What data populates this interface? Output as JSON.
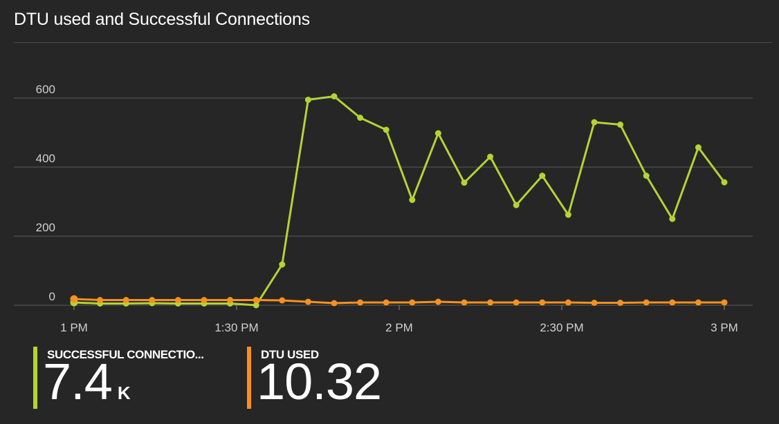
{
  "title": "DTU used and Successful Connections",
  "chart_data": {
    "type": "line",
    "x_ticks": [
      "1 PM",
      "1:30 PM",
      "2 PM",
      "2:30 PM",
      "3 PM"
    ],
    "x_range": [
      "13:00",
      "15:00"
    ],
    "x_interval_minutes": 5,
    "y_ticks": [
      "0",
      "200",
      "400",
      "600"
    ],
    "ylim": [
      0,
      640
    ],
    "grid": true,
    "series": [
      {
        "name": "SUCCESSFUL CONNECTIO...",
        "color": "#b5d334",
        "values": [
          8,
          5,
          5,
          6,
          5,
          5,
          5,
          0,
          118,
          595,
          605,
          543,
          508,
          305,
          498,
          355,
          430,
          290,
          375,
          262,
          530,
          523,
          375,
          250,
          457,
          356
        ]
      },
      {
        "name": "DTU USED",
        "color": "#f7911e",
        "values": [
          18,
          15,
          15,
          15,
          15,
          15,
          15,
          15,
          14,
          10,
          6,
          8,
          8,
          8,
          10,
          8,
          8,
          8,
          8,
          8,
          7,
          7,
          8,
          8,
          8,
          8
        ]
      }
    ]
  },
  "tiles": [
    {
      "label": "SUCCESSFUL CONNECTIO...",
      "value": "7.4",
      "unit": "K",
      "color": "#b5d334"
    },
    {
      "label": "DTU USED",
      "value": "10.32",
      "unit": "",
      "color": "#f7911e"
    }
  ]
}
